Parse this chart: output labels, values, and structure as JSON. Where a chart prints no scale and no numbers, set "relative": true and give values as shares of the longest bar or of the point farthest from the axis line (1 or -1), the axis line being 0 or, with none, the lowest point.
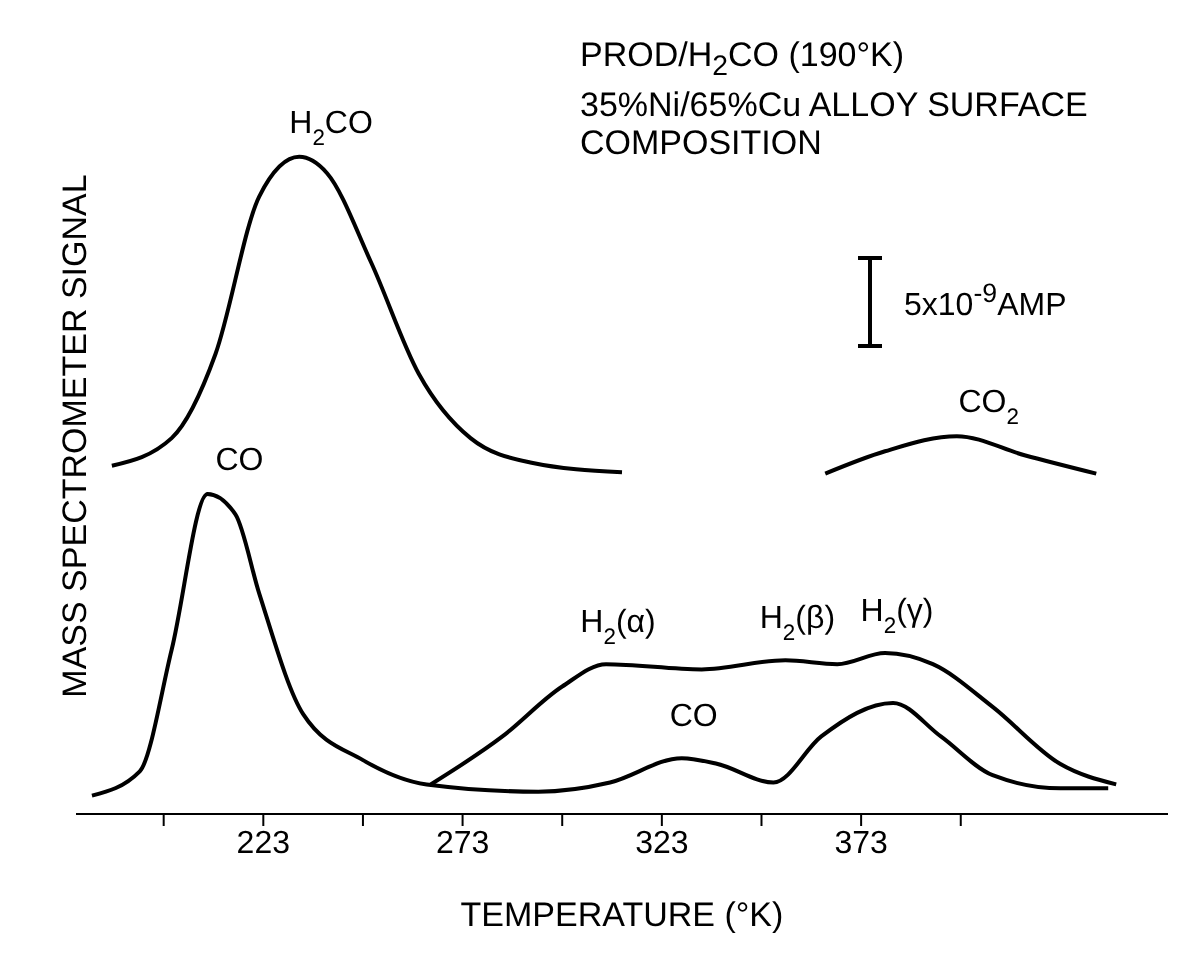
{
  "chart_data": {
    "type": "line",
    "relative": true,
    "title": "PROD/H$_{2}$CO (190°K)",
    "subtitle": "35%Ni/65%Cu  ALLOY SURFACE COMPOSITION",
    "xlabel": "TEMPERATURE (°K)",
    "ylabel": "MASS SPECTROMETER SIGNAL",
    "xlim": [
      176,
      450
    ],
    "xticks": [
      {
        "value": 198,
        "label": null
      },
      223,
      {
        "value": 248,
        "label": null
      },
      273,
      {
        "value": 298,
        "label": null
      },
      323,
      {
        "value": 348,
        "label": null
      },
      373,
      {
        "value": 398,
        "label": null
      }
    ],
    "series": [
      {
        "name": "H$_{2}$CO",
        "color": "#000000",
        "x": [
          185,
          200,
          211,
          222,
          232,
          239,
          250,
          262,
          275,
          290,
          313
        ],
        "values": [
          0.53,
          0.572,
          0.7,
          0.94,
          1.0,
          0.975,
          0.84,
          0.67,
          0.572,
          0.535,
          0.52
        ]
      },
      {
        "name": "CO$_{2}$",
        "color": "#000000",
        "x": [
          364,
          379,
          397,
          414,
          432
        ],
        "values": [
          0.518,
          0.552,
          0.575,
          0.546,
          0.518
        ]
      },
      {
        "name": "CO",
        "color": "#000000",
        "x": [
          180,
          192,
          200,
          209,
          216,
          222,
          233,
          248,
          264,
          292,
          310,
          328,
          337,
          351,
          363,
          381,
          393,
          406,
          423,
          435
        ],
        "values": [
          0.028,
          0.065,
          0.25,
          0.487,
          0.456,
          0.335,
          0.152,
          0.082,
          0.045,
          0.034,
          0.048,
          0.085,
          0.076,
          0.048,
          0.118,
          0.169,
          0.118,
          0.059,
          0.039,
          0.039
        ]
      },
      {
        "color": "#000000",
        "x": [
          265,
          283,
          298,
          309,
          333,
          354,
          367,
          379,
          391,
          406,
          423,
          437
        ],
        "values": [
          0.045,
          0.118,
          0.194,
          0.228,
          0.22,
          0.234,
          0.228,
          0.245,
          0.228,
          0.163,
          0.076,
          0.045
        ]
      }
    ],
    "annotations": [
      {
        "text": "CO",
        "x": 328,
        "y": 0.085
      },
      {
        "text": "H$_{2}$(α)",
        "x": 309,
        "y": 0.228
      },
      {
        "text": "H$_{2}$(β)",
        "x": 354,
        "y": 0.234
      },
      {
        "text": "H$_{2}$(γ)",
        "x": 379,
        "y": 0.245
      },
      "5x10$^{-9}$AMP"
    ]
  }
}
